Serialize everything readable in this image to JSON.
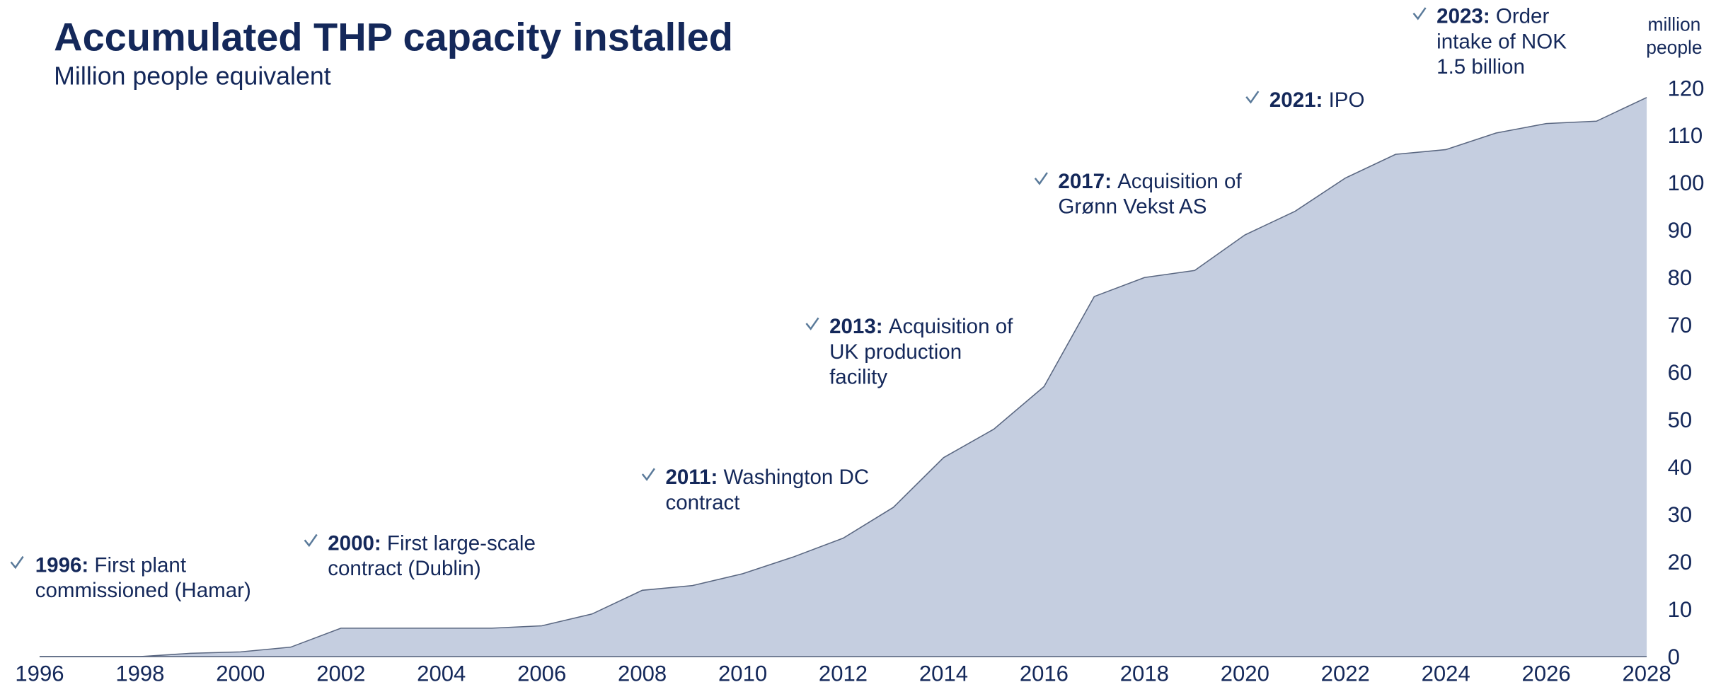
{
  "chart_data": {
    "type": "area",
    "title": "Accumulated THP capacity installed",
    "subtitle": "Million people equivalent",
    "ylabel": [
      "million",
      "people"
    ],
    "x": [
      1996,
      1997,
      1998,
      1999,
      2000,
      2001,
      2002,
      2003,
      2004,
      2005,
      2006,
      2007,
      2008,
      2009,
      2010,
      2011,
      2012,
      2013,
      2014,
      2015,
      2016,
      2017,
      2018,
      2019,
      2020,
      2021,
      2022,
      2023,
      2024,
      2025,
      2026,
      2027,
      2028
    ],
    "values": [
      0,
      0,
      0,
      0.7,
      1,
      2,
      6,
      6,
      6,
      6,
      6.5,
      9,
      14,
      15,
      17.5,
      21,
      25,
      31.5,
      42,
      48,
      57,
      76,
      80,
      81.5,
      89,
      94,
      101,
      106,
      107,
      110.5,
      112.5,
      113,
      118
    ],
    "color": "#c5cee0",
    "line_color": "#5a6781",
    "xlim": [
      1996,
      2028
    ],
    "xticks": [
      1996,
      1998,
      2000,
      2002,
      2004,
      2006,
      2008,
      2010,
      2012,
      2014,
      2016,
      2018,
      2020,
      2022,
      2024,
      2026,
      2028
    ],
    "ylim": [
      0,
      120
    ],
    "yticks": [
      0,
      10,
      20,
      30,
      40,
      50,
      60,
      70,
      80,
      90,
      100,
      110,
      120
    ],
    "annotations": [
      {
        "label": "1996:",
        "lines": [
          "First plant",
          "commissioned (Hamar)"
        ]
      },
      {
        "label": "2000:",
        "lines": [
          "First large-scale",
          "contract (Dublin)"
        ]
      },
      {
        "label": "2011:",
        "lines": [
          "Washington DC",
          "contract"
        ]
      },
      {
        "label": "2013:",
        "lines": [
          "Acquisition of",
          "UK production",
          "facility"
        ]
      },
      {
        "label": "2017:",
        "lines": [
          "Acquisition of",
          "Grønn Vekst AS"
        ]
      },
      {
        "label": "2021:",
        "lines": [
          "IPO"
        ]
      },
      {
        "label": "2023:",
        "lines": [
          "Order",
          "intake of NOK",
          "1.5 billion"
        ]
      }
    ]
  }
}
